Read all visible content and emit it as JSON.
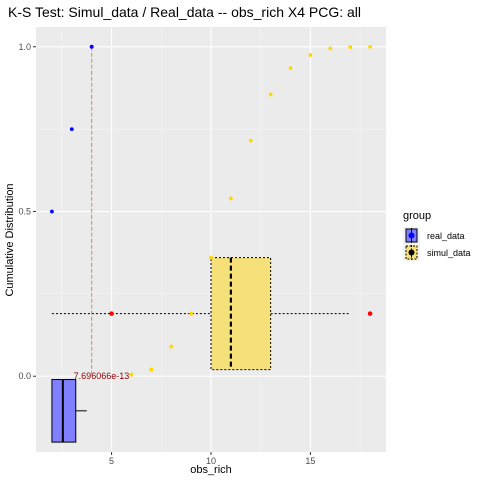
{
  "chart_data": {
    "type": "scatter",
    "title": "K-S Test: Simul_data / Real_data -- obs_rich X4 PCG: all",
    "xlabel": "obs_rich",
    "ylabel": "Cumulative Distribution",
    "xlim": [
      1.2,
      18.8
    ],
    "ylim": [
      -0.23,
      1.06
    ],
    "x_ticks": [
      5,
      10,
      15
    ],
    "y_ticks": [
      0.0,
      0.5,
      1.0
    ],
    "x_tick_labels": [
      "5",
      "10",
      "15"
    ],
    "y_tick_labels": [
      "0.0",
      "0.5",
      "1.0"
    ],
    "grid": true,
    "legend": {
      "title": "group",
      "position": "right",
      "entries": [
        {
          "label": "real_data",
          "color": "#0000ff",
          "fill": "#7f7fff",
          "dashed": false
        },
        {
          "label": "simul_data",
          "color": "#000000",
          "fill": "#f6e07a",
          "dashed": true
        }
      ]
    },
    "series": [
      {
        "name": "real_data",
        "color": "#0000ff",
        "points": [
          [
            2,
            0.5
          ],
          [
            3,
            0.75
          ],
          [
            4,
            1.0
          ]
        ]
      },
      {
        "name": "simul_data",
        "color": "#ffd700",
        "points": [
          [
            1,
            0.0
          ],
          [
            6,
            0.005
          ],
          [
            7,
            0.02
          ],
          [
            8,
            0.09
          ],
          [
            9,
            0.19
          ],
          [
            10,
            0.36
          ],
          [
            11,
            0.54
          ],
          [
            12,
            0.715
          ],
          [
            13,
            0.855
          ],
          [
            14,
            0.935
          ],
          [
            15,
            0.975
          ],
          [
            16,
            0.995
          ],
          [
            17,
            0.999
          ],
          [
            18,
            1.0
          ],
          [
            19,
            1.0
          ]
        ]
      }
    ],
    "ks_statistic": {
      "x": 4,
      "y_from": 0.0,
      "y_to": 1.0,
      "color": "#e08060",
      "peak_point_color": "#a020f0",
      "label": "7.696066e-13",
      "label_color": "#8b0000"
    },
    "boxplots": [
      {
        "group": "real_data",
        "orientation": "vertical",
        "x_left": 2.0,
        "x_right": 3.2,
        "median_x": 2.55,
        "y_q1": -0.2,
        "y_q3": -0.01,
        "whisker_to_x": 3.75,
        "whisker_y": -0.105,
        "fill": "#7f7fff",
        "stroke": "#000000"
      },
      {
        "group": "simul_data",
        "orientation": "horizontal",
        "y_center": 0.19,
        "y_half_height": 0.17,
        "q1": 10,
        "median": 11,
        "q3": 13,
        "whisker_low": 2,
        "whisker_high": 17,
        "outliers": [
          5,
          18
        ],
        "outlier_color": "#ff0000",
        "fill": "#f6e07a",
        "stroke": "#000000"
      }
    ]
  }
}
